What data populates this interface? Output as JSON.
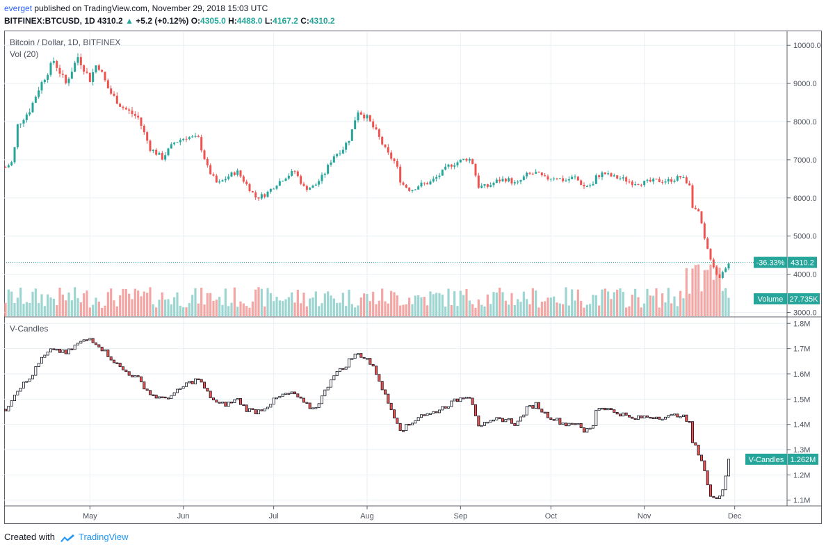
{
  "header": {
    "user": "everget",
    "published_text": " published on TradingView.com, November 29, 2018 15:03 UTC",
    "symbol": "BITFINEX:BTCUSD, 1D",
    "last": "4310.2",
    "change_arrow": "▲",
    "change": "+5.2 (+0.12%)",
    "o_label": "O:",
    "o_value": "4305.0",
    "h_label": "H:",
    "h_value": "4488.0",
    "l_label": "L:",
    "l_value": "4167.2",
    "c_label": "C:",
    "c_value": "4310.2"
  },
  "footer": {
    "created_with": "Created with",
    "brand": "TradingView"
  },
  "colors": {
    "up": "#26a69a",
    "down": "#ef5350",
    "vol_up": "#9dd6d1",
    "vol_down": "#f4a6a4",
    "grid": "#e9eff3",
    "axis_text": "#4c525e",
    "badge_teal": "#26a69a",
    "dotted_line": "#26a69a"
  },
  "chart_data": [
    {
      "type": "candlestick",
      "title": "Bitcoin / Dollar, 1D, BITFINEX",
      "overlay_label": "Vol (20)",
      "y_ticks": [
        "10000.0",
        "9000.0",
        "8000.0",
        "7000.0",
        "6000.0",
        "5000.0",
        "4000.0",
        "3000.0"
      ],
      "y_tick_values": [
        10000,
        9000,
        8000,
        7000,
        6000,
        5000,
        4000,
        3000
      ],
      "ylim": [
        2900,
        10350
      ],
      "x_ticks": [
        "May",
        "Jun",
        "Jul",
        "Aug",
        "Sep",
        "Oct",
        "Nov",
        "Dec"
      ],
      "price_badge": {
        "change": "-36.33%",
        "value": "4310.2",
        "level": 4310.2
      },
      "volume_badge": {
        "label": "Volume",
        "value": "27.735K"
      },
      "close_anchors": [
        [
          0,
          6800
        ],
        [
          3,
          6950
        ],
        [
          5,
          7900
        ],
        [
          10,
          8300
        ],
        [
          14,
          8900
        ],
        [
          20,
          9600
        ],
        [
          25,
          9000
        ],
        [
          30,
          9700
        ],
        [
          35,
          9100
        ],
        [
          38,
          9550
        ],
        [
          43,
          8800
        ],
        [
          48,
          8400
        ],
        [
          55,
          8100
        ],
        [
          60,
          7300
        ],
        [
          65,
          7050
        ],
        [
          70,
          7450
        ],
        [
          75,
          7600
        ],
        [
          80,
          7550
        ],
        [
          84,
          6750
        ],
        [
          88,
          6350
        ],
        [
          92,
          6550
        ],
        [
          96,
          6700
        ],
        [
          100,
          6350
        ],
        [
          104,
          6000
        ],
        [
          108,
          6100
        ],
        [
          112,
          6350
        ],
        [
          116,
          6550
        ],
        [
          120,
          6700
        ],
        [
          124,
          6250
        ],
        [
          128,
          6300
        ],
        [
          132,
          6600
        ],
        [
          136,
          7100
        ],
        [
          140,
          7300
        ],
        [
          143,
          7600
        ],
        [
          146,
          8300
        ],
        [
          150,
          8100
        ],
        [
          154,
          7700
        ],
        [
          158,
          7200
        ],
        [
          162,
          6900
        ],
        [
          164,
          6400
        ],
        [
          168,
          6200
        ],
        [
          172,
          6350
        ],
        [
          176,
          6400
        ],
        [
          180,
          6600
        ],
        [
          184,
          6850
        ],
        [
          188,
          6950
        ],
        [
          192,
          7050
        ],
        [
          194,
          6900
        ],
        [
          196,
          6300
        ],
        [
          200,
          6300
        ],
        [
          204,
          6450
        ],
        [
          208,
          6500
        ],
        [
          212,
          6350
        ],
        [
          216,
          6600
        ],
        [
          220,
          6650
        ],
        [
          224,
          6500
        ],
        [
          228,
          6550
        ],
        [
          232,
          6450
        ],
        [
          236,
          6550
        ],
        [
          240,
          6300
        ],
        [
          244,
          6350
        ],
        [
          245,
          6550
        ],
        [
          248,
          6650
        ],
        [
          252,
          6550
        ],
        [
          256,
          6500
        ],
        [
          260,
          6400
        ],
        [
          265,
          6400
        ],
        [
          270,
          6450
        ],
        [
          275,
          6450
        ],
        [
          280,
          6550
        ],
        [
          284,
          6350
        ],
        [
          285,
          5800
        ],
        [
          288,
          5550
        ],
        [
          290,
          4900
        ],
        [
          292,
          4500
        ],
        [
          295,
          4000
        ],
        [
          296,
          3900
        ],
        [
          298,
          4100
        ],
        [
          300,
          4310
        ]
      ],
      "volume_axis_max_approx": 60000
    },
    {
      "type": "candlestick",
      "title": "V-Candles",
      "y_ticks": [
        "1.8M",
        "1.7M",
        "1.6M",
        "1.5M",
        "1.4M",
        "1.3M",
        "1.2M",
        "1.1M"
      ],
      "y_tick_values": [
        1.8,
        1.7,
        1.6,
        1.5,
        1.4,
        1.3,
        1.2,
        1.1
      ],
      "ylim": [
        1.08,
        1.82
      ],
      "badge": {
        "label": "V-Candles",
        "value": "1.262M",
        "level": 1.262
      },
      "close_anchors": [
        [
          0,
          1.46
        ],
        [
          5,
          1.54
        ],
        [
          10,
          1.58
        ],
        [
          15,
          1.66
        ],
        [
          20,
          1.7
        ],
        [
          25,
          1.68
        ],
        [
          30,
          1.72
        ],
        [
          35,
          1.74
        ],
        [
          38,
          1.72
        ],
        [
          43,
          1.67
        ],
        [
          48,
          1.62
        ],
        [
          55,
          1.58
        ],
        [
          60,
          1.52
        ],
        [
          65,
          1.5
        ],
        [
          70,
          1.52
        ],
        [
          75,
          1.56
        ],
        [
          80,
          1.58
        ],
        [
          84,
          1.52
        ],
        [
          88,
          1.48
        ],
        [
          92,
          1.48
        ],
        [
          96,
          1.5
        ],
        [
          100,
          1.46
        ],
        [
          104,
          1.45
        ],
        [
          108,
          1.47
        ],
        [
          112,
          1.5
        ],
        [
          116,
          1.52
        ],
        [
          120,
          1.52
        ],
        [
          124,
          1.48
        ],
        [
          128,
          1.46
        ],
        [
          132,
          1.52
        ],
        [
          136,
          1.6
        ],
        [
          140,
          1.62
        ],
        [
          143,
          1.66
        ],
        [
          146,
          1.68
        ],
        [
          150,
          1.66
        ],
        [
          154,
          1.6
        ],
        [
          158,
          1.5
        ],
        [
          162,
          1.42
        ],
        [
          164,
          1.38
        ],
        [
          168,
          1.4
        ],
        [
          172,
          1.44
        ],
        [
          176,
          1.44
        ],
        [
          180,
          1.46
        ],
        [
          184,
          1.48
        ],
        [
          188,
          1.5
        ],
        [
          192,
          1.52
        ],
        [
          194,
          1.48
        ],
        [
          196,
          1.4
        ],
        [
          200,
          1.4
        ],
        [
          204,
          1.42
        ],
        [
          208,
          1.42
        ],
        [
          212,
          1.4
        ],
        [
          216,
          1.46
        ],
        [
          220,
          1.48
        ],
        [
          224,
          1.44
        ],
        [
          228,
          1.42
        ],
        [
          232,
          1.4
        ],
        [
          236,
          1.41
        ],
        [
          240,
          1.37
        ],
        [
          244,
          1.4
        ],
        [
          245,
          1.46
        ],
        [
          248,
          1.47
        ],
        [
          252,
          1.45
        ],
        [
          256,
          1.44
        ],
        [
          260,
          1.42
        ],
        [
          265,
          1.43
        ],
        [
          270,
          1.43
        ],
        [
          275,
          1.43
        ],
        [
          280,
          1.44
        ],
        [
          284,
          1.4
        ],
        [
          285,
          1.33
        ],
        [
          288,
          1.28
        ],
        [
          290,
          1.22
        ],
        [
          292,
          1.12
        ],
        [
          294,
          1.1
        ],
        [
          296,
          1.12
        ],
        [
          298,
          1.16
        ],
        [
          300,
          1.262
        ]
      ]
    }
  ]
}
